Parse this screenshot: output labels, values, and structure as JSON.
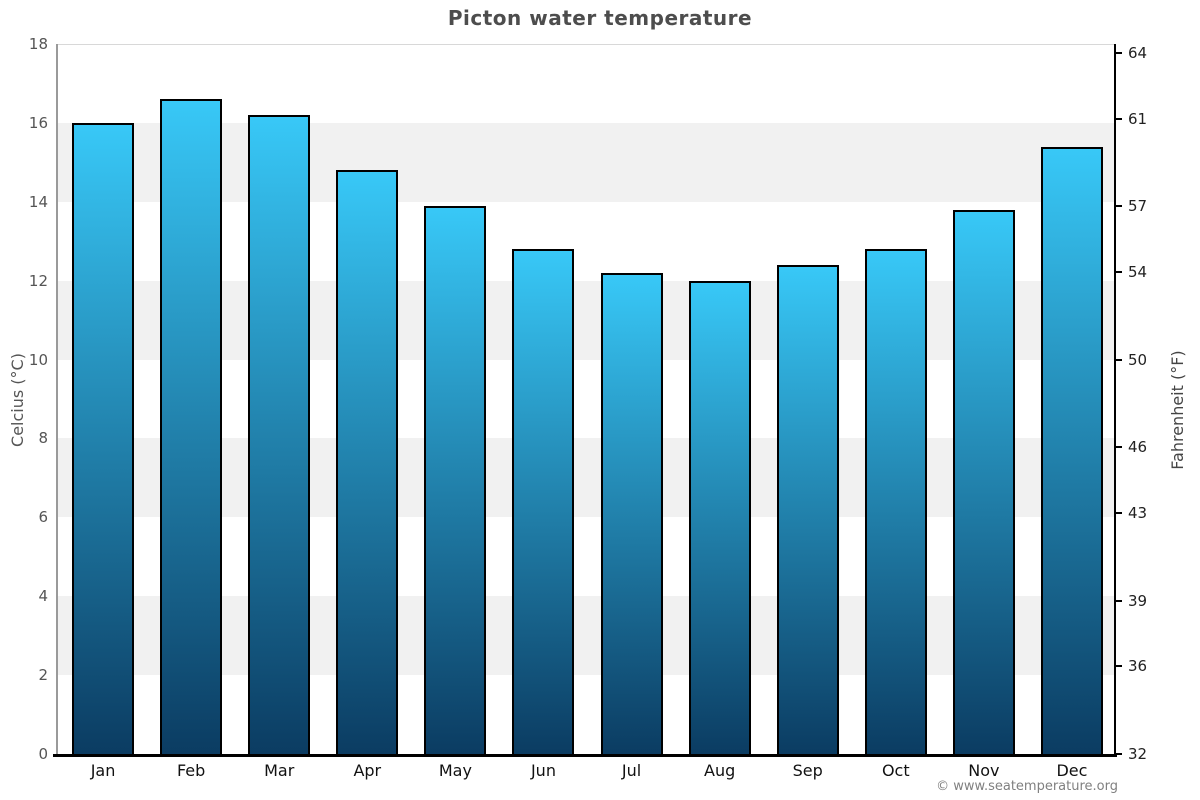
{
  "chart_data": {
    "type": "bar",
    "title": "Picton water temperature",
    "categories": [
      "Jan",
      "Feb",
      "Mar",
      "Apr",
      "May",
      "Jun",
      "Jul",
      "Aug",
      "Sep",
      "Oct",
      "Nov",
      "Dec"
    ],
    "values": [
      16.0,
      16.6,
      16.2,
      14.8,
      13.9,
      12.8,
      12.2,
      12.0,
      12.4,
      12.8,
      13.8,
      15.4
    ],
    "xlabel": "",
    "ylabel_left": "Celcius (°C)",
    "ylabel_right": "Fahrenheit (°F)",
    "ylim_left": [
      0,
      18
    ],
    "yticks_left": [
      0,
      2,
      4,
      6,
      8,
      10,
      12,
      14,
      16,
      18
    ],
    "yticks_right_fahrenheit": [
      32,
      36,
      39,
      43,
      46,
      50,
      54,
      57,
      61,
      64
    ],
    "grid": "alternating horizontal gray bands every 2°C (gray: 2-4, 6-8, 10-12, 14-16)",
    "legend": "none",
    "colors": {
      "bar_gradient_top": "#38c8f7",
      "bar_gradient_bottom": "#0b3c62",
      "bar_border": "#000000",
      "band_gray": "#f1f1f1",
      "title_text": "#4d4d4d",
      "left_axis_line": "#9a9a9a",
      "right_axis_line": "#000000",
      "bottom_axis_line": "#000000",
      "footer_text": "#808080"
    }
  },
  "footer": {
    "copyright": "© www.seatemperature.org"
  }
}
